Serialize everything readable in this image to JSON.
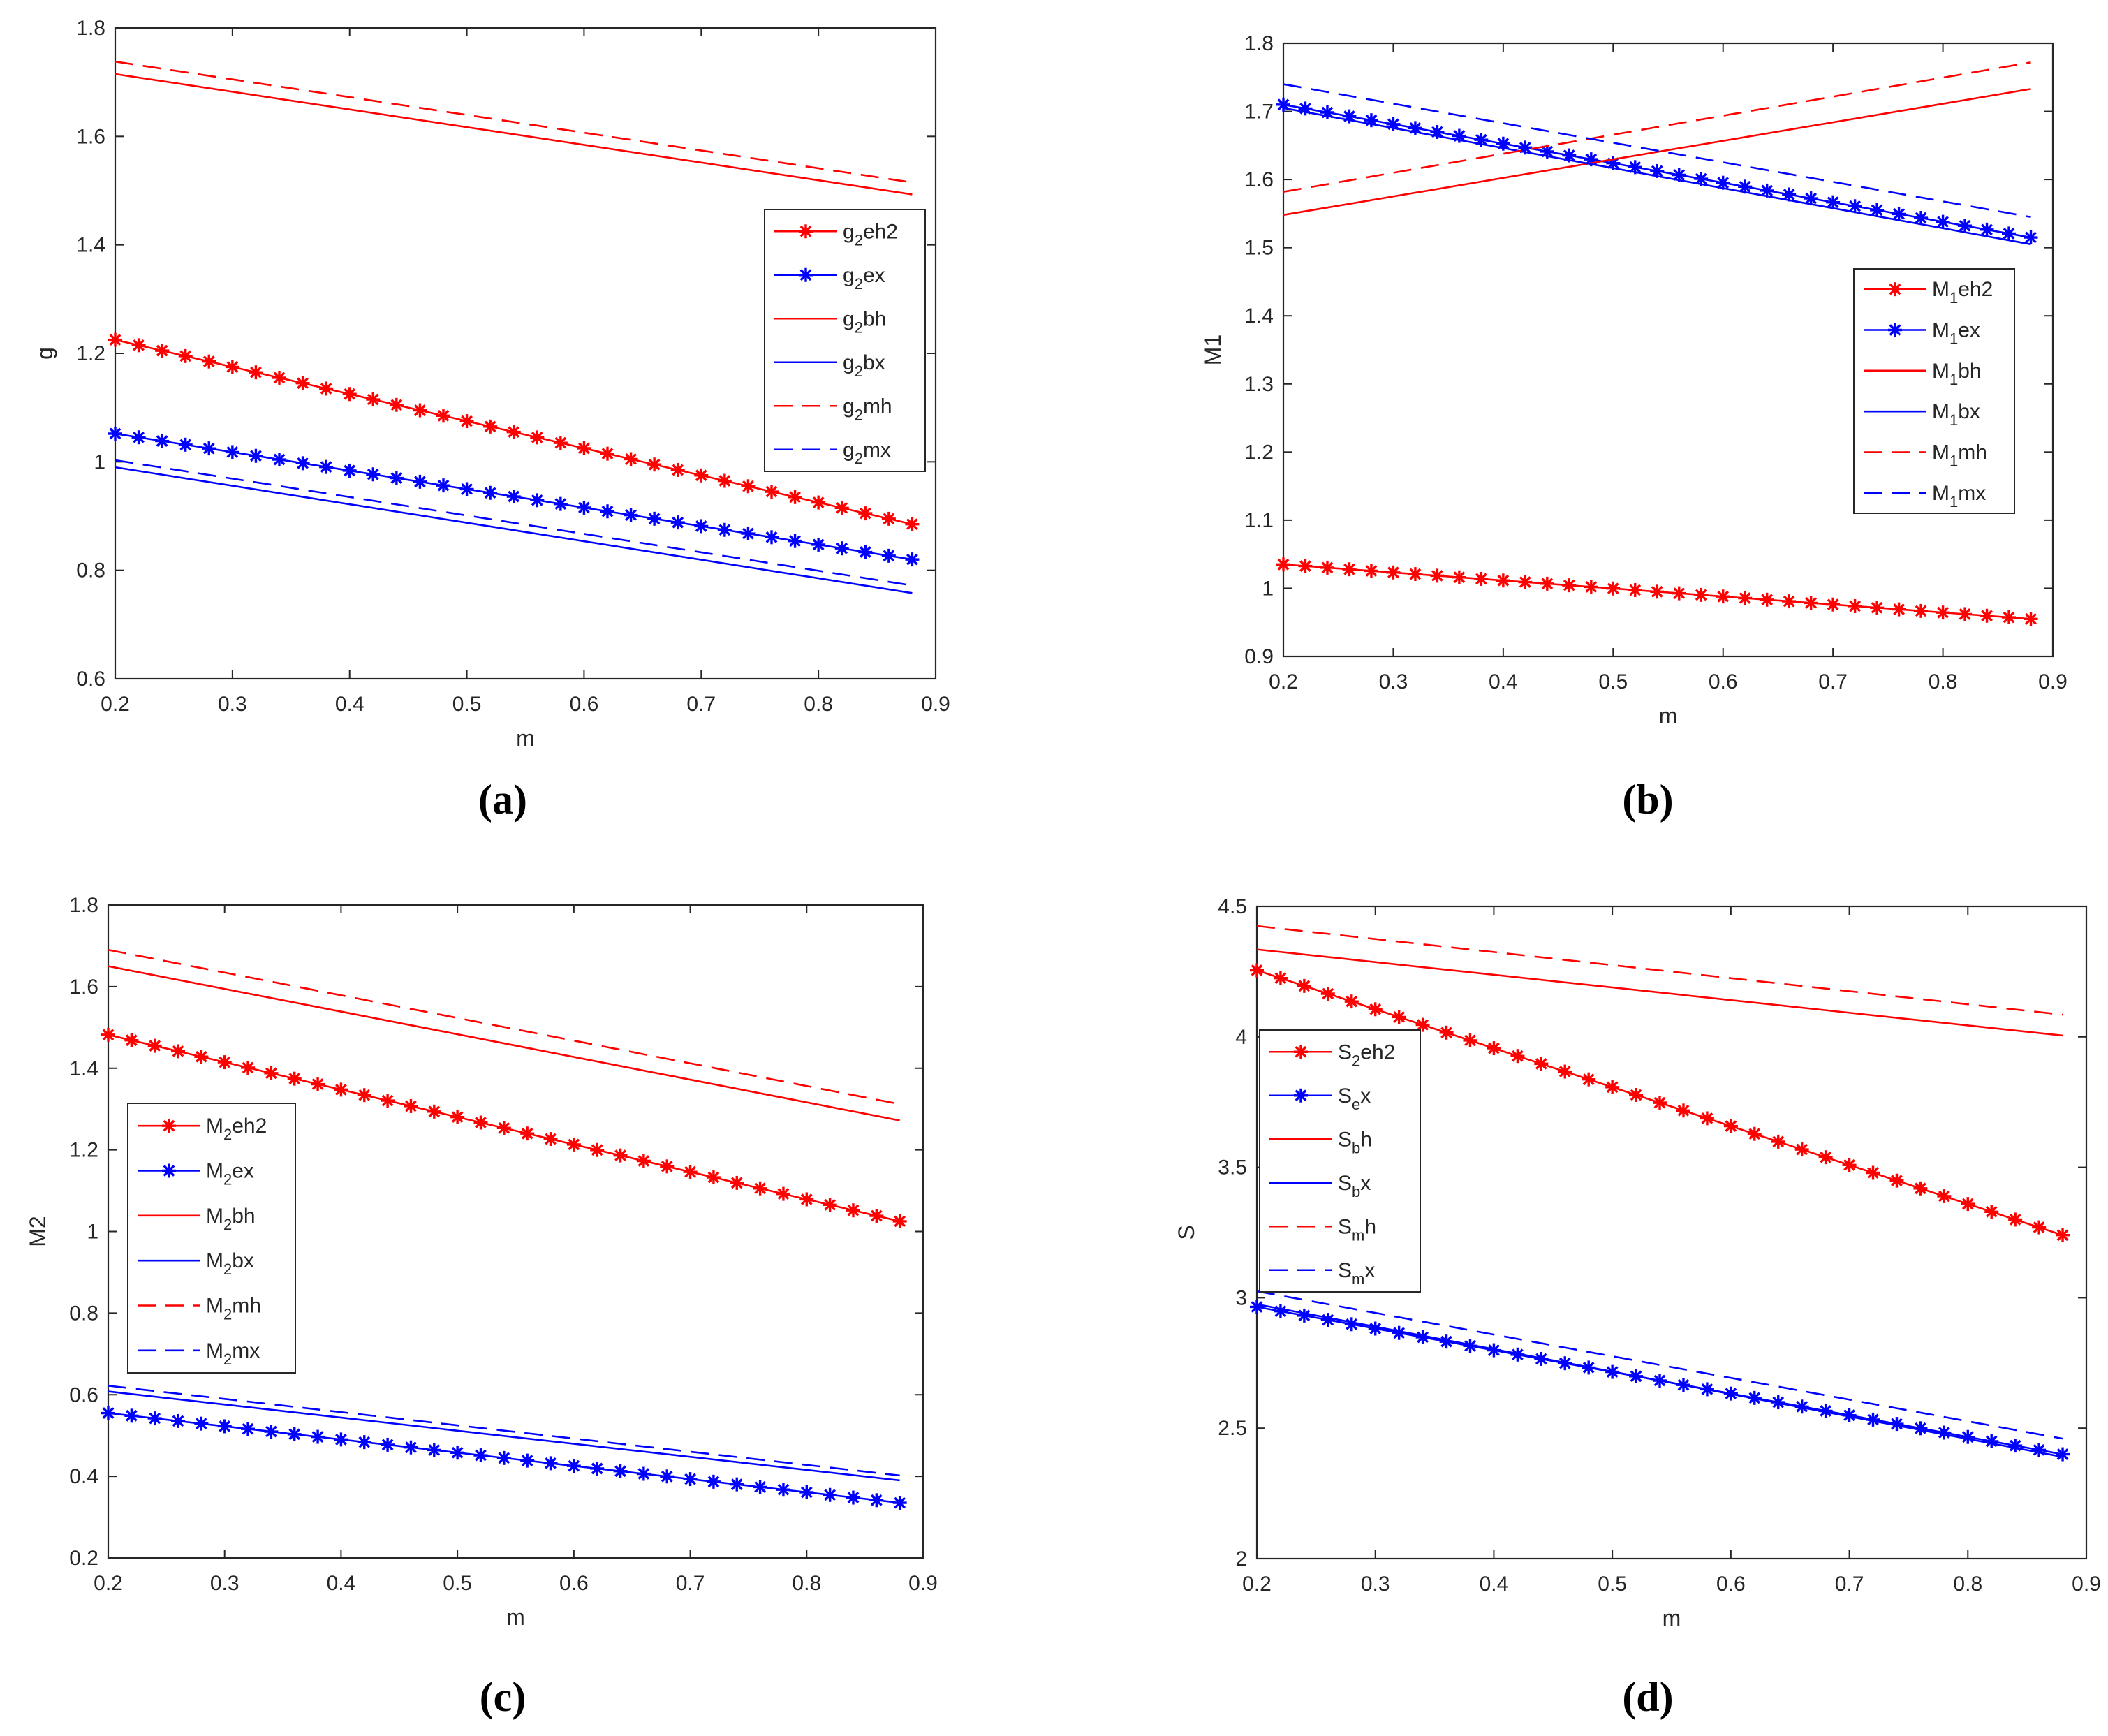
{
  "colors": {
    "red": "#ff0000",
    "blue": "#0000ff",
    "axis": "#262626",
    "background": "#ffffff"
  },
  "chart_data": [
    {
      "id": "a",
      "type": "line",
      "caption": "(a)",
      "xlabel": "m",
      "ylabel": "g",
      "xlim": [
        0.2,
        0.9
      ],
      "ylim": [
        0.6,
        1.8
      ],
      "xticks": [
        "0.2",
        "0.3",
        "0.4",
        "0.5",
        "0.6",
        "0.7",
        "0.8",
        "0.9"
      ],
      "yticks": [
        "0.6",
        "0.8",
        "1",
        "1.2",
        "1.4",
        "1.6",
        "1.8"
      ],
      "legend_position": "right",
      "x_range": [
        0.2,
        0.88
      ],
      "series": [
        {
          "name": "g2eh2",
          "base": "g",
          "sub": "2",
          "suffix": "eh2",
          "color": "red",
          "style": "star",
          "values": [
            1.225,
            0.885
          ]
        },
        {
          "name": "g2ex",
          "base": "g",
          "sub": "2",
          "suffix": "ex",
          "color": "blue",
          "style": "star",
          "values": [
            1.052,
            0.82
          ]
        },
        {
          "name": "g2bh",
          "base": "g",
          "sub": "2",
          "suffix": "bh",
          "color": "red",
          "style": "solid",
          "values": [
            1.715,
            1.493
          ]
        },
        {
          "name": "g2bx",
          "base": "g",
          "sub": "2",
          "suffix": "bx",
          "color": "blue",
          "style": "solid",
          "values": [
            0.99,
            0.758
          ]
        },
        {
          "name": "g2mh",
          "base": "g",
          "sub": "2",
          "suffix": "mh",
          "color": "red",
          "style": "dashed",
          "values": [
            1.738,
            1.515
          ]
        },
        {
          "name": "g2mx",
          "base": "g",
          "sub": "2",
          "suffix": "mx",
          "color": "blue",
          "style": "dashed",
          "values": [
            1.003,
            0.772
          ]
        }
      ]
    },
    {
      "id": "b",
      "type": "line",
      "caption": "(b)",
      "xlabel": "m",
      "ylabel": "M1",
      "xlim": [
        0.2,
        0.9
      ],
      "ylim": [
        0.9,
        1.8
      ],
      "xticks": [
        "0.2",
        "0.3",
        "0.4",
        "0.5",
        "0.6",
        "0.7",
        "0.8",
        "0.9"
      ],
      "yticks": [
        "0.9",
        "1",
        "1.1",
        "1.2",
        "1.3",
        "1.4",
        "1.5",
        "1.6",
        "1.7",
        "1.8"
      ],
      "legend_position": "right",
      "x_range": [
        0.2,
        0.88
      ],
      "series": [
        {
          "name": "M1eh2",
          "base": "M",
          "sub": "1",
          "suffix": "eh2",
          "color": "red",
          "style": "star",
          "values": [
            1.035,
            0.955
          ]
        },
        {
          "name": "M1ex",
          "base": "M",
          "sub": "1",
          "suffix": "ex",
          "color": "blue",
          "style": "star",
          "values": [
            1.71,
            1.515
          ]
        },
        {
          "name": "M1bh",
          "base": "M",
          "sub": "1",
          "suffix": "bh",
          "color": "red",
          "style": "solid",
          "values": [
            1.548,
            1.733
          ]
        },
        {
          "name": "M1bx",
          "base": "M",
          "sub": "1",
          "suffix": "bx",
          "color": "blue",
          "style": "solid",
          "values": [
            1.705,
            1.505
          ]
        },
        {
          "name": "M1mh",
          "base": "M",
          "sub": "1",
          "suffix": "mh",
          "color": "red",
          "style": "dashed",
          "values": [
            1.582,
            1.772
          ]
        },
        {
          "name": "M1mx",
          "base": "M",
          "sub": "1",
          "suffix": "mx",
          "color": "blue",
          "style": "dashed",
          "values": [
            1.74,
            1.545
          ]
        }
      ]
    },
    {
      "id": "c",
      "type": "line",
      "caption": "(c)",
      "xlabel": "m",
      "ylabel": "M2",
      "xlim": [
        0.2,
        0.9
      ],
      "ylim": [
        0.2,
        1.8
      ],
      "xticks": [
        "0.2",
        "0.3",
        "0.4",
        "0.5",
        "0.6",
        "0.7",
        "0.8",
        "0.9"
      ],
      "yticks": [
        "0.2",
        "0.4",
        "0.6",
        "0.8",
        "1",
        "1.2",
        "1.4",
        "1.6",
        "1.8"
      ],
      "legend_position": "left",
      "x_range": [
        0.2,
        0.88
      ],
      "series": [
        {
          "name": "M2eh2",
          "base": "M",
          "sub": "2",
          "suffix": "eh2",
          "color": "red",
          "style": "star",
          "values": [
            1.482,
            1.025
          ]
        },
        {
          "name": "M2ex",
          "base": "M",
          "sub": "2",
          "suffix": "ex",
          "color": "blue",
          "style": "star",
          "values": [
            0.555,
            0.335
          ]
        },
        {
          "name": "M2bh",
          "base": "M",
          "sub": "2",
          "suffix": "bh",
          "color": "red",
          "style": "solid",
          "values": [
            1.65,
            1.272
          ]
        },
        {
          "name": "M2bx",
          "base": "M",
          "sub": "2",
          "suffix": "bx",
          "color": "blue",
          "style": "solid",
          "values": [
            0.608,
            0.39
          ]
        },
        {
          "name": "M2mh",
          "base": "M",
          "sub": "2",
          "suffix": "mh",
          "color": "red",
          "style": "dashed",
          "values": [
            1.69,
            1.312
          ]
        },
        {
          "name": "M2mx",
          "base": "M",
          "sub": "2",
          "suffix": "mx",
          "color": "blue",
          "style": "dashed",
          "values": [
            0.622,
            0.402
          ]
        }
      ]
    },
    {
      "id": "d",
      "type": "line",
      "caption": "(d)",
      "xlabel": "m",
      "ylabel": "S",
      "xlim": [
        0.2,
        0.9
      ],
      "ylim": [
        2,
        4.5
      ],
      "xticks": [
        "0.2",
        "0.3",
        "0.4",
        "0.5",
        "0.6",
        "0.7",
        "0.8",
        "0.9"
      ],
      "yticks": [
        "2",
        "2.5",
        "3",
        "3.5",
        "4",
        "4.5"
      ],
      "legend_position": "left",
      "x_range": [
        0.2,
        0.88
      ],
      "series": [
        {
          "name": "S2eh2",
          "base": "S",
          "sub": "2",
          "suffix": "eh2",
          "color": "red",
          "style": "star",
          "values": [
            4.255,
            3.24
          ]
        },
        {
          "name": "Sex",
          "base": "S",
          "sub": "e",
          "suffix": "x",
          "color": "blue",
          "style": "star",
          "values": [
            2.965,
            2.4
          ]
        },
        {
          "name": "Sbh",
          "base": "S",
          "sub": "b",
          "suffix": "h",
          "color": "red",
          "style": "solid",
          "values": [
            4.335,
            4.005
          ]
        },
        {
          "name": "Sbx",
          "base": "S",
          "sub": "b",
          "suffix": "x",
          "color": "blue",
          "style": "solid",
          "values": [
            2.975,
            2.39
          ]
        },
        {
          "name": "Smh",
          "base": "S",
          "sub": "m",
          "suffix": "h",
          "color": "red",
          "style": "dashed",
          "values": [
            4.425,
            4.085
          ]
        },
        {
          "name": "Smx",
          "base": "S",
          "sub": "m",
          "suffix": "x",
          "color": "blue",
          "style": "dashed",
          "values": [
            3.025,
            2.46
          ]
        }
      ]
    }
  ]
}
